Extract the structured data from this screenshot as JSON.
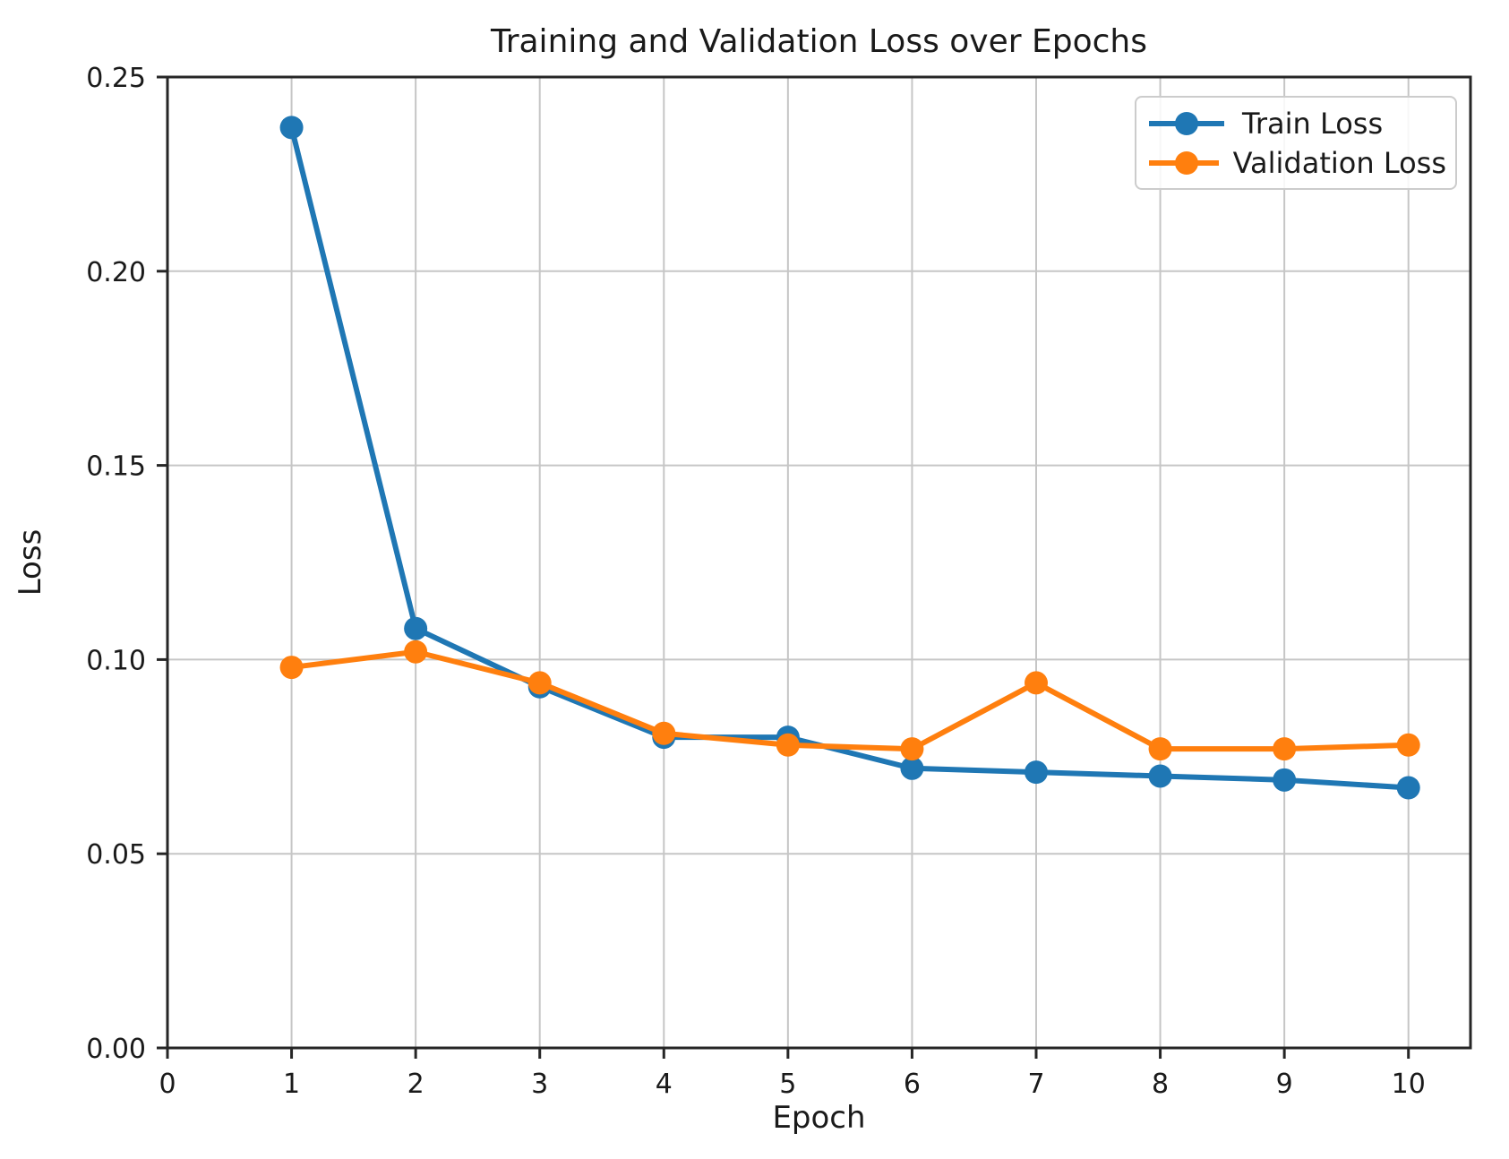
{
  "chart_data": {
    "type": "line",
    "title": "Training and Validation Loss over Epochs",
    "xlabel": "Epoch",
    "ylabel": "Loss",
    "x": [
      1,
      2,
      3,
      4,
      5,
      6,
      7,
      8,
      9,
      10
    ],
    "series": [
      {
        "name": "Train Loss",
        "color": "#1f77b4",
        "values": [
          0.237,
          0.108,
          0.093,
          0.08,
          0.08,
          0.072,
          0.071,
          0.07,
          0.069,
          0.067
        ]
      },
      {
        "name": "Validation Loss",
        "color": "#ff7f0e",
        "values": [
          0.098,
          0.102,
          0.094,
          0.081,
          0.078,
          0.077,
          0.094,
          0.077,
          0.077,
          0.078
        ]
      }
    ],
    "xlim": [
      0,
      10.5
    ],
    "ylim": [
      0,
      0.25
    ],
    "x_ticks": [
      0,
      1,
      2,
      3,
      4,
      5,
      6,
      7,
      8,
      9,
      10
    ],
    "x_tick_labels": [
      "0",
      "1",
      "2",
      "3",
      "4",
      "5",
      "6",
      "7",
      "8",
      "9",
      "10"
    ],
    "y_ticks": [
      0.0,
      0.05,
      0.1,
      0.15,
      0.2,
      0.25
    ],
    "y_tick_labels": [
      "0.00",
      "0.05",
      "0.10",
      "0.15",
      "0.20",
      "0.25"
    ],
    "grid": true,
    "legend_position": "upper right",
    "marker": "circle",
    "colors": {
      "background": "#ffffff",
      "grid": "#c6c6c6",
      "spine": "#262626",
      "text": "#1a1a1a",
      "legend_border": "#cccccc"
    }
  }
}
